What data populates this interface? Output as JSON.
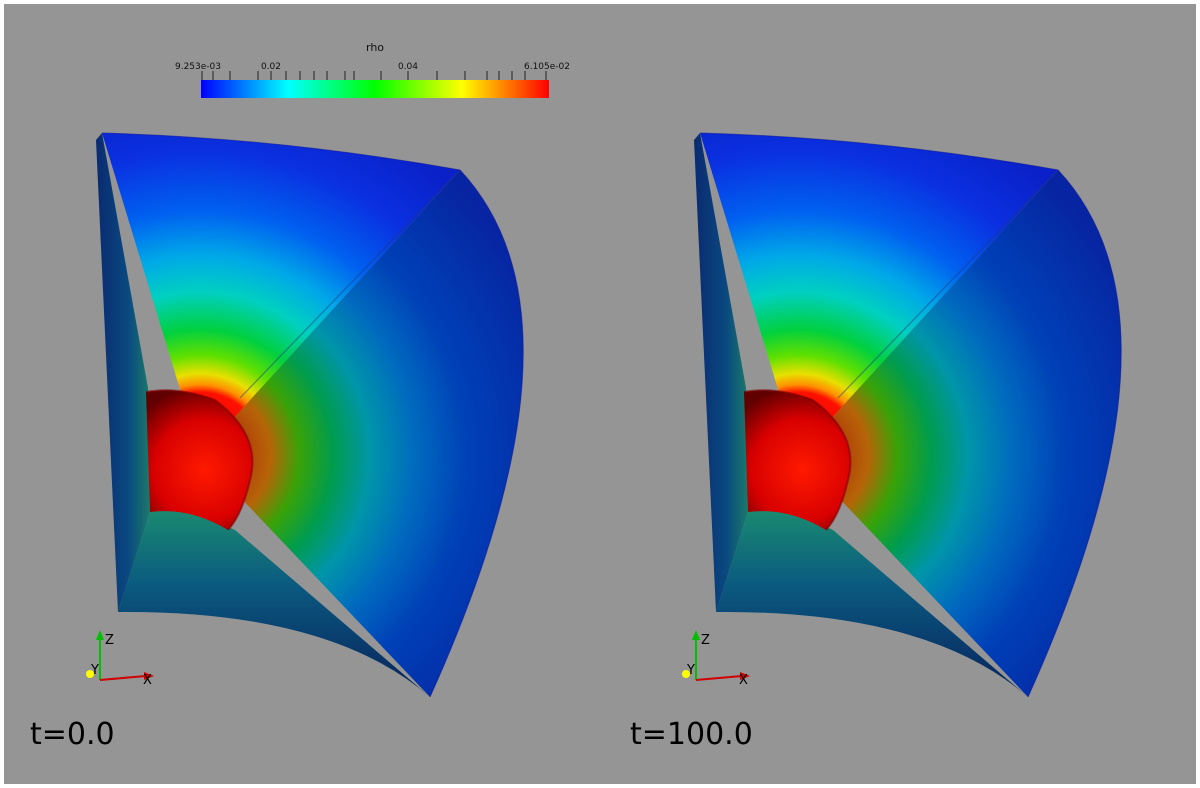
{
  "viewer": {
    "background_color": "#959595",
    "border_color": "#ffffff"
  },
  "colorbar": {
    "title": "rho",
    "min_label": "9.253e-03",
    "mid_labels": [
      "0.02",
      "0.04"
    ],
    "max_label": "6.105e-02",
    "colormap": [
      "#0000ff",
      "#00ffff",
      "#00ff00",
      "#ffff00",
      "#ff0000"
    ]
  },
  "panels": [
    {
      "id": "left",
      "time_label": "t=0.0"
    },
    {
      "id": "right",
      "time_label": "t=100.0"
    }
  ],
  "axes_triad": {
    "z_label": "Z",
    "y_label": "Y",
    "x_label": "X",
    "z_color": "#00c000",
    "x_color": "#d00000",
    "y_color": "#ffff00"
  }
}
